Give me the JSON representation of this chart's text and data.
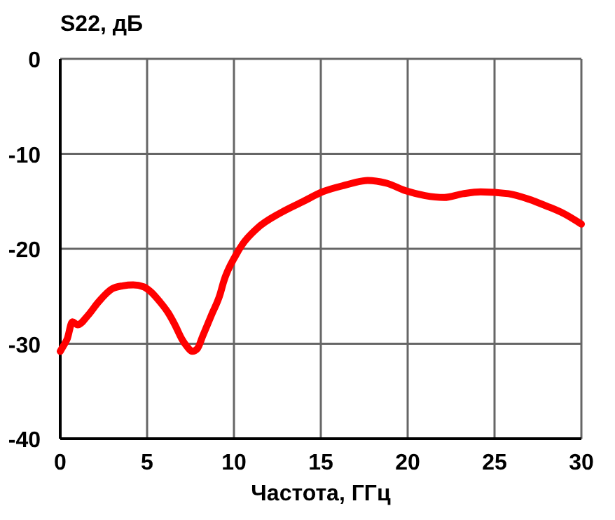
{
  "chart_data": {
    "type": "line",
    "ylabel": "S22, дБ",
    "xlabel": "Частота, ГГц",
    "xlim": [
      0,
      30
    ],
    "xticks": [
      0,
      5,
      10,
      15,
      20,
      25,
      30
    ],
    "ylim": [
      -40,
      0
    ],
    "yticks": [
      -40,
      -30,
      -20,
      -10,
      0
    ],
    "grid": true,
    "series": [
      {
        "color": "#ff0000",
        "x": [
          0,
          0.16,
          0.4,
          0.7,
          1.0,
          1.6,
          2.2,
          3.0,
          3.6,
          4.2,
          4.8,
          5.2,
          5.7,
          6.2,
          6.6,
          7.0,
          7.3,
          7.6,
          7.9,
          8.2,
          8.7,
          9.2,
          9.4,
          10.1,
          10.5,
          11.3,
          12.7,
          14.0,
          15.1,
          16.4,
          17.7,
          18.8,
          19.9,
          21.0,
          22.1,
          23.2,
          24.2,
          25.8,
          27.0,
          28.0,
          29.0,
          30.0
        ],
        "values": [
          -30.8,
          -30.3,
          -29.5,
          -27.7,
          -28.0,
          -27.0,
          -25.6,
          -24.2,
          -23.9,
          -23.8,
          -24.0,
          -24.5,
          -25.5,
          -26.7,
          -28.0,
          -29.5,
          -30.3,
          -30.8,
          -30.5,
          -29.2,
          -27.0,
          -24.8,
          -23.5,
          -20.7,
          -19.5,
          -17.9,
          -16.2,
          -15.0,
          -14.0,
          -13.3,
          -12.8,
          -13.1,
          -13.9,
          -14.4,
          -14.6,
          -14.2,
          -14.0,
          -14.2,
          -14.8,
          -15.5,
          -16.3,
          -17.4
        ]
      }
    ]
  }
}
